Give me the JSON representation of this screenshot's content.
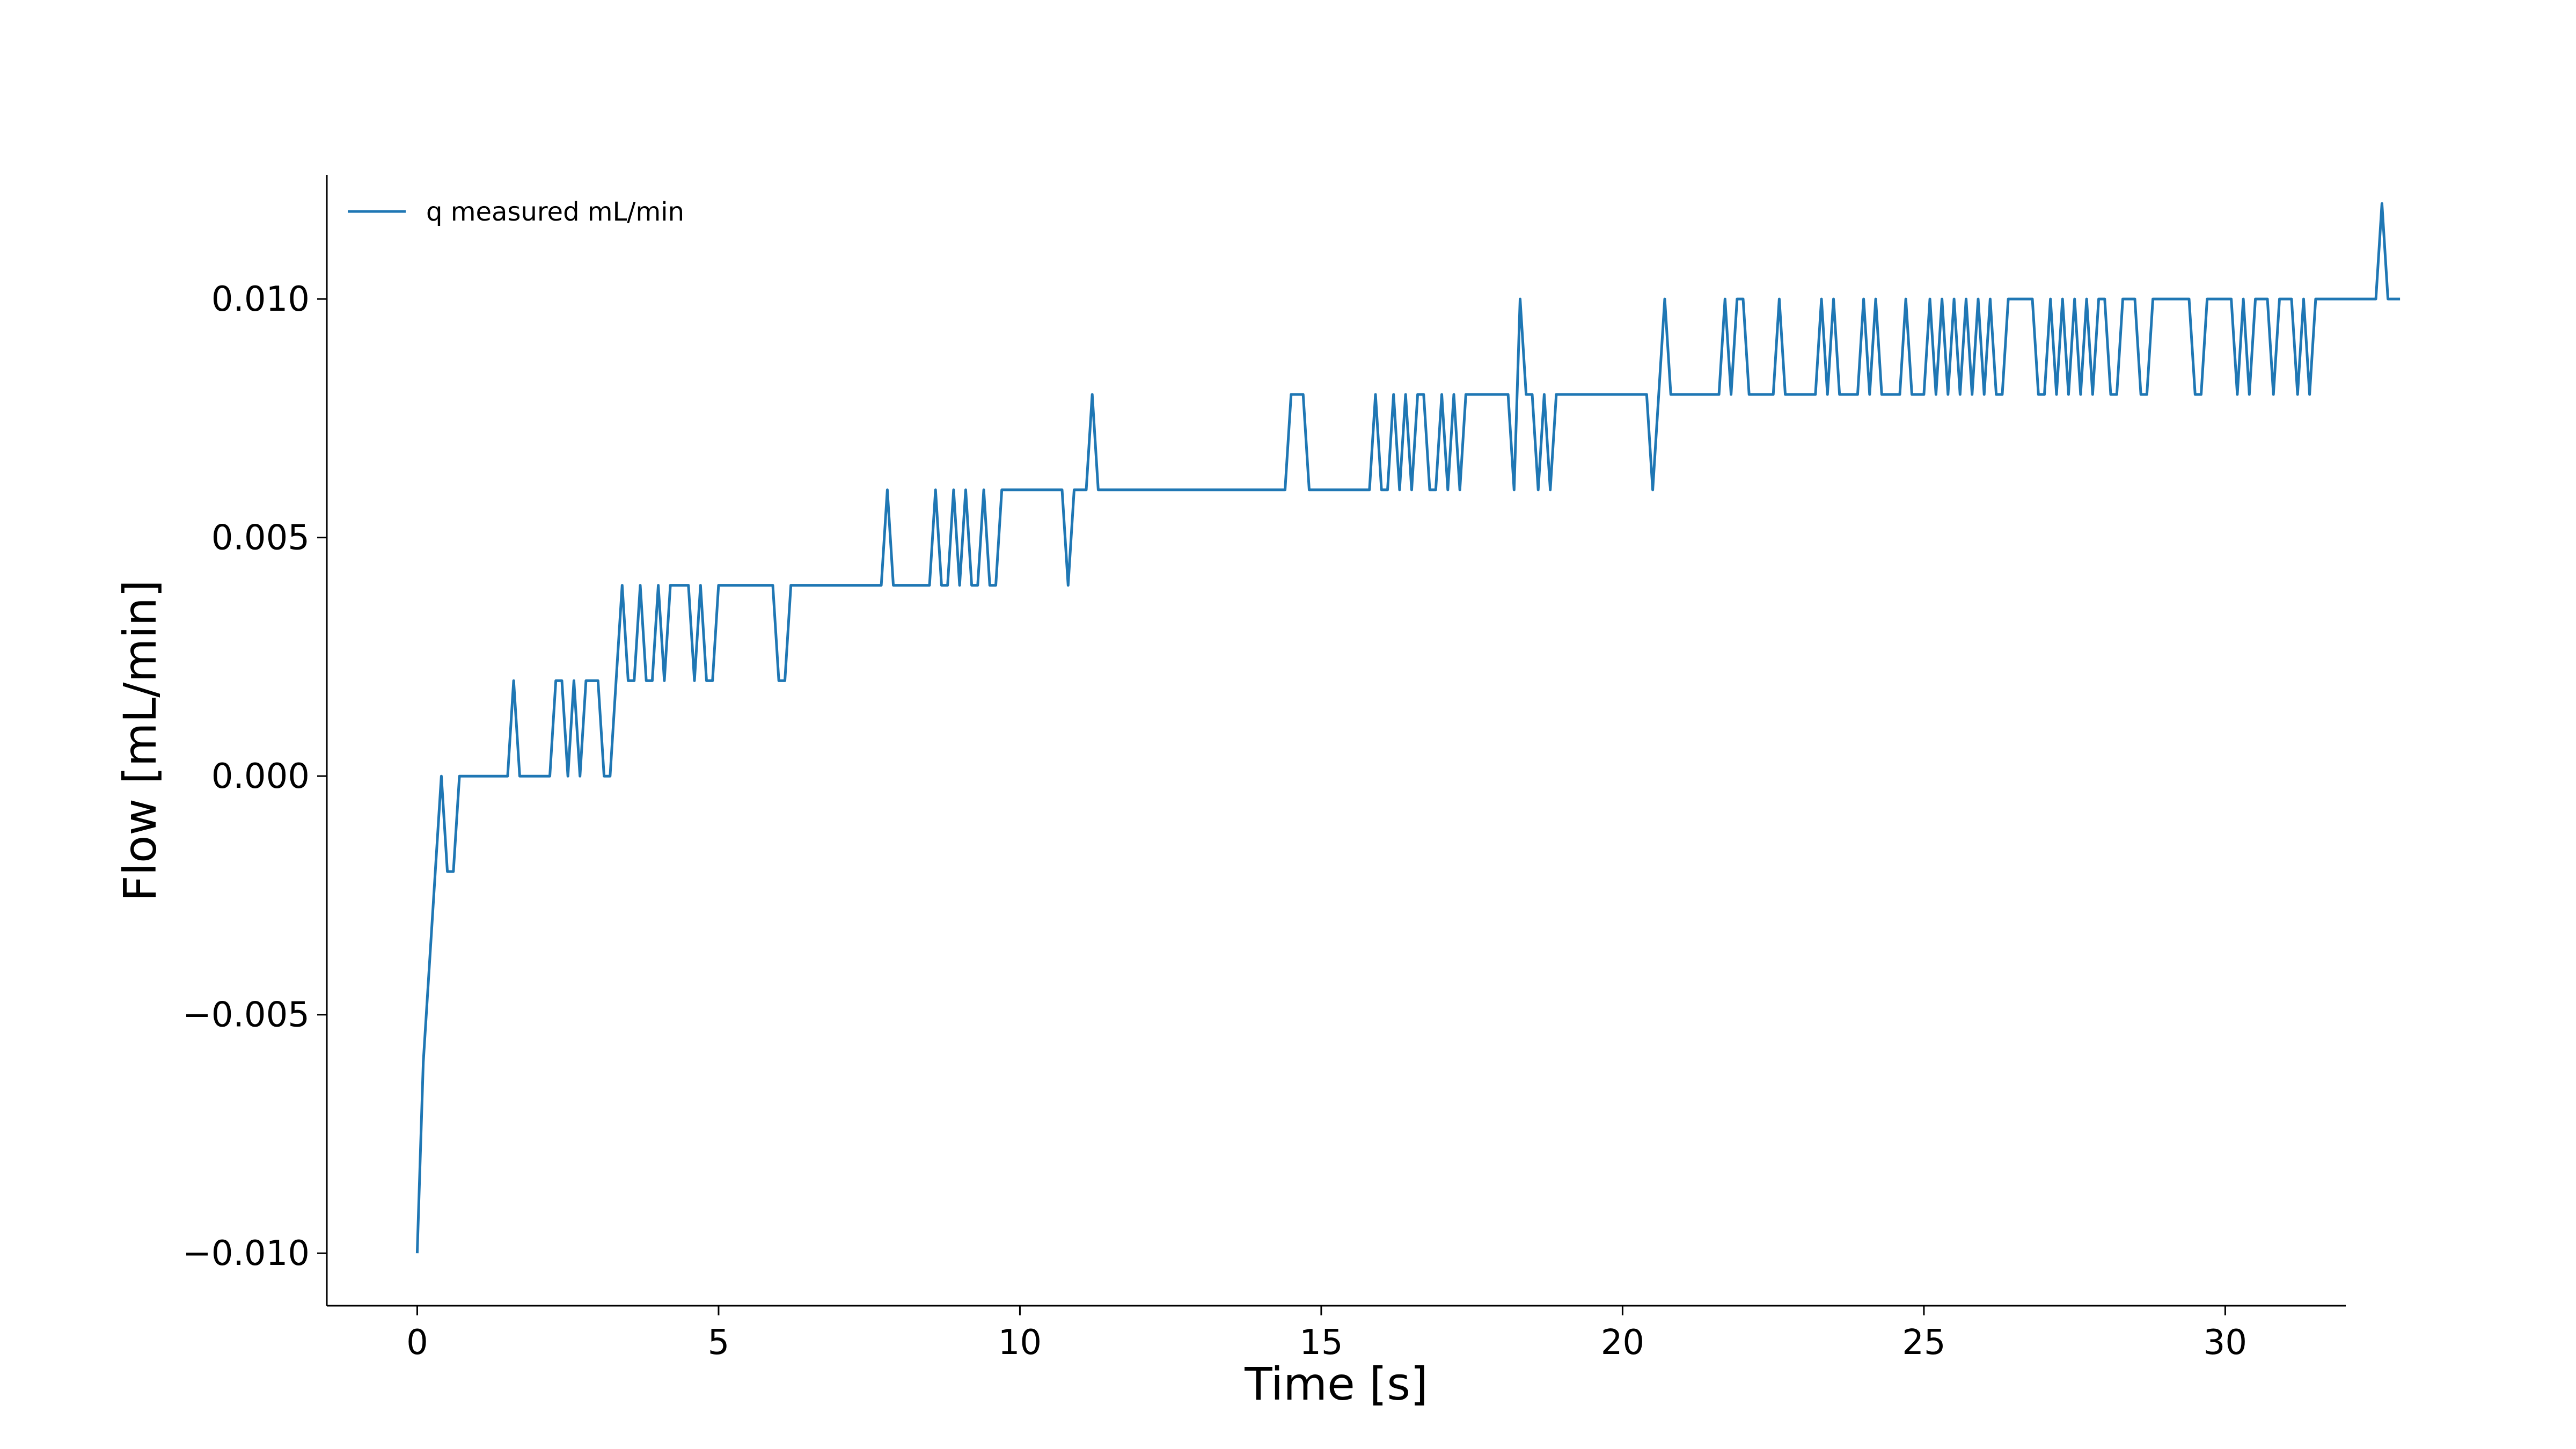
{
  "chart_data": {
    "type": "line",
    "title": "",
    "xlabel": "Time [s]",
    "ylabel": "Flow [mL/min]",
    "xlim": [
      -1.5,
      32
    ],
    "ylim": [
      -0.0111,
      0.0126
    ],
    "x_ticks": [
      0,
      5,
      10,
      15,
      20,
      25,
      30
    ],
    "x_tick_labels": [
      "0",
      "5",
      "10",
      "15",
      "20",
      "25",
      "30"
    ],
    "y_ticks": [
      -0.01,
      -0.005,
      0.0,
      0.005,
      0.01
    ],
    "y_tick_labels": [
      "−0.010",
      "−0.005",
      "0.000",
      "0.005",
      "0.010"
    ],
    "grid": false,
    "legend_position": "top-left",
    "colors": {
      "series": "#1f77b4",
      "axes": "#000000"
    },
    "series": [
      {
        "name": "q measured mL/min",
        "values": [
          -0.01,
          -0.006,
          -0.004,
          -0.002,
          0,
          -0.002,
          -0.002,
          0,
          0,
          0,
          0,
          0,
          0,
          0,
          0,
          0,
          0.002,
          0,
          0,
          0,
          0,
          0,
          0,
          0.002,
          0.002,
          0,
          0.002,
          0,
          0.002,
          0.002,
          0.002,
          0,
          0,
          0.002,
          0.004,
          0.002,
          0.002,
          0.004,
          0.002,
          0.002,
          0.004,
          0.002,
          0.004,
          0.004,
          0.004,
          0.004,
          0.002,
          0.004,
          0.002,
          0.002,
          0.004,
          0.004,
          0.004,
          0.004,
          0.004,
          0.004,
          0.004,
          0.004,
          0.004,
          0.004,
          0.002,
          0.002,
          0.004,
          0.004,
          0.004,
          0.004,
          0.004,
          0.004,
          0.004,
          0.004,
          0.004,
          0.004,
          0.004,
          0.004,
          0.004,
          0.004,
          0.004,
          0.004,
          0.006,
          0.004,
          0.004,
          0.004,
          0.004,
          0.004,
          0.004,
          0.004,
          0.006,
          0.004,
          0.004,
          0.006,
          0.004,
          0.006,
          0.004,
          0.004,
          0.006,
          0.004,
          0.004,
          0.006,
          0.006,
          0.006,
          0.006,
          0.006,
          0.006,
          0.006,
          0.006,
          0.006,
          0.006,
          0.006,
          0.004,
          0.006,
          0.006,
          0.006,
          0.008,
          0.006,
          0.006,
          0.006,
          0.006,
          0.006,
          0.006,
          0.006,
          0.006,
          0.006,
          0.006,
          0.006,
          0.006,
          0.006,
          0.006,
          0.006,
          0.006,
          0.006,
          0.006,
          0.006,
          0.006,
          0.006,
          0.006,
          0.006,
          0.006,
          0.006,
          0.006,
          0.006,
          0.006,
          0.006,
          0.006,
          0.006,
          0.006,
          0.008,
          0.008,
          0.008,
          0.006,
          0.006,
          0.006,
          0.006,
          0.006,
          0.006,
          0.006,
          0.006,
          0.006,
          0.006,
          0.006,
          0.008,
          0.006,
          0.006,
          0.008,
          0.006,
          0.008,
          0.006,
          0.008,
          0.008,
          0.006,
          0.006,
          0.008,
          0.006,
          0.008,
          0.006,
          0.008,
          0.008,
          0.008,
          0.008,
          0.008,
          0.008,
          0.008,
          0.008,
          0.006,
          0.01,
          0.008,
          0.008,
          0.006,
          0.008,
          0.006,
          0.008,
          0.008,
          0.008,
          0.008,
          0.008,
          0.008,
          0.008,
          0.008,
          0.008,
          0.008,
          0.008,
          0.008,
          0.008,
          0.008,
          0.008,
          0.008,
          0.006,
          0.008,
          0.01,
          0.008,
          0.008,
          0.008,
          0.008,
          0.008,
          0.008,
          0.008,
          0.008,
          0.008,
          0.01,
          0.008,
          0.01,
          0.01,
          0.008,
          0.008,
          0.008,
          0.008,
          0.008,
          0.01,
          0.008,
          0.008,
          0.008,
          0.008,
          0.008,
          0.008,
          0.01,
          0.008,
          0.01,
          0.008,
          0.008,
          0.008,
          0.008,
          0.01,
          0.008,
          0.01,
          0.008,
          0.008,
          0.008,
          0.008,
          0.01,
          0.008,
          0.008,
          0.008,
          0.01,
          0.008,
          0.01,
          0.008,
          0.01,
          0.008,
          0.01,
          0.008,
          0.01,
          0.008,
          0.01,
          0.008,
          0.008,
          0.01,
          0.01,
          0.01,
          0.01,
          0.01,
          0.008,
          0.008,
          0.01,
          0.008,
          0.01,
          0.008,
          0.01,
          0.008,
          0.01,
          0.008,
          0.01,
          0.01,
          0.008,
          0.008,
          0.01,
          0.01,
          0.01,
          0.008,
          0.008,
          0.01,
          0.01,
          0.01,
          0.01,
          0.01,
          0.01,
          0.01,
          0.008,
          0.008,
          0.01,
          0.01,
          0.01,
          0.01,
          0.01,
          0.008,
          0.01,
          0.008,
          0.01,
          0.01,
          0.01,
          0.008,
          0.01,
          0.01,
          0.01,
          0.008,
          0.01,
          0.008,
          0.01,
          0.01,
          0.01,
          0.01,
          0.01,
          0.01,
          0.01,
          0.01,
          0.01,
          0.01,
          0.01,
          0.012,
          0.01,
          0.01,
          0.01
        ],
        "x_start": 0,
        "x_step": 0.1
      }
    ]
  }
}
